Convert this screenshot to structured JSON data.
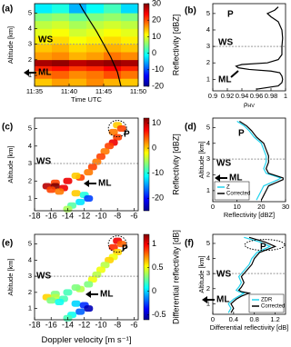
{
  "chart_data": [
    {
      "type": "heatmap",
      "panel": "(a)",
      "xlabel": "Time UTC",
      "ylabel": "Altitude [km]",
      "colorbar_label": "Reflectivity [dBZ]",
      "x_edges": [
        35,
        37.5,
        40,
        42.5,
        45,
        47.5,
        50
      ],
      "y_edges": [
        0.3,
        0.8,
        1.3,
        1.6,
        2.0,
        2.5,
        3.0,
        3.5,
        4.0,
        4.5,
        5.0,
        5.6
      ],
      "z": [
        [
          14,
          16,
          15,
          17,
          15,
          14
        ],
        [
          18,
          19,
          17,
          18,
          20,
          18
        ],
        [
          22,
          23,
          21,
          22,
          24,
          22
        ],
        [
          28,
          29,
          27,
          28,
          29,
          28
        ],
        [
          16,
          17,
          15,
          16,
          18,
          17
        ],
        [
          14,
          15,
          13,
          14,
          15,
          14
        ],
        [
          12,
          13,
          11,
          12,
          13,
          12
        ],
        [
          10,
          11,
          9,
          10,
          11,
          10
        ],
        [
          8,
          9,
          7,
          8,
          9,
          8
        ],
        [
          5,
          6,
          4,
          5,
          6,
          5
        ],
        [
          -2,
          0,
          -5,
          -1,
          2,
          -3
        ]
      ],
      "track": {
        "color": "#000000",
        "x": [
          41.5,
          42,
          43,
          44,
          45,
          46,
          47,
          47.5
        ],
        "y": [
          5.6,
          5.2,
          4.5,
          3.8,
          3,
          2.2,
          1.2,
          0.3
        ]
      },
      "xlim": [
        35,
        50
      ],
      "xticks": [
        {
          "value": 35,
          "label": "11:35"
        },
        {
          "value": 40,
          "label": "11:40"
        },
        {
          "value": 45,
          "label": "11:45"
        },
        {
          "value": 50,
          "label": "11:50"
        }
      ],
      "ylim": [
        0.3,
        5.6
      ],
      "yticks": [
        1,
        2,
        3,
        4,
        5
      ],
      "clim": [
        -20,
        30
      ],
      "cticks": [
        30,
        20,
        10,
        0,
        -10,
        -20
      ],
      "hlines": [
        3
      ],
      "annotations": [
        "WS",
        "ML"
      ]
    },
    {
      "type": "profile",
      "panel": "(b)",
      "xlabel": "ρ",
      "xlabel_sub": "HV",
      "series": [
        {
          "color": "#000000",
          "altitudes": [
            0.4,
            0.6,
            0.8,
            1.0,
            1.2,
            1.4,
            1.5,
            1.6,
            1.7,
            1.8,
            1.9,
            2.0,
            2.2,
            2.5,
            3.0,
            3.5,
            4.0,
            4.5,
            4.8,
            5.0,
            5.2,
            5.4
          ],
          "values": [
            0.96,
            0.99,
            0.995,
            0.996,
            0.995,
            0.992,
            0.98,
            0.95,
            0.935,
            0.932,
            0.94,
            0.975,
            0.99,
            0.995,
            0.995,
            0.996,
            0.995,
            0.99,
            0.98,
            0.975,
            0.985,
            0.99
          ]
        }
      ],
      "xlim": [
        0.9,
        1
      ],
      "xticks": [
        0.9,
        0.92,
        0.94,
        0.96,
        0.98,
        1
      ],
      "ylim": [
        0.3,
        5.6
      ],
      "yticks": [
        1,
        2,
        3,
        4,
        5
      ],
      "hlines": [
        3
      ],
      "annotations": [
        "P",
        "WS",
        "ML"
      ]
    },
    {
      "type": "cells",
      "panel": "(c)",
      "ylabel": "Altitude [km]",
      "colorbar_label": "Reflectivity [dBZ]",
      "x": [
        -8,
        -7.5,
        -8.5,
        -8,
        -8.5,
        -9,
        -9.5,
        -10,
        -10.5,
        -11,
        -11.5,
        -12.5,
        -14,
        -15.5,
        -16.5,
        -15.5,
        -14.5,
        -16,
        -15,
        -13,
        -12,
        -11.5,
        -12.5,
        -13.5,
        -14,
        -13
      ],
      "y": [
        5.2,
        5.0,
        4.8,
        4.5,
        4.2,
        4.0,
        3.7,
        3.4,
        3.1,
        2.8,
        2.5,
        2.2,
        2.0,
        1.9,
        1.7,
        1.7,
        1.6,
        1.5,
        1.4,
        1.3,
        1.2,
        1.0,
        0.8,
        0.6,
        0.4,
        2.3
      ],
      "z": [
        0,
        5,
        3,
        5,
        8,
        5,
        3,
        5,
        3,
        5,
        3,
        5,
        8,
        5,
        10,
        12,
        8,
        5,
        3,
        0,
        -10,
        -18,
        -12,
        -8,
        -5,
        0
      ],
      "xlim": [
        -18,
        -5.5
      ],
      "xticks": [
        -18,
        -16,
        -14,
        -12,
        -10,
        -8,
        -6
      ],
      "ylim": [
        0.3,
        5.6
      ],
      "yticks": [
        1,
        2,
        3,
        4,
        5
      ],
      "clim": [
        -25,
        12
      ],
      "cticks": [
        10,
        0,
        -10,
        -20
      ],
      "hlines": [
        3
      ],
      "annotations": [
        "P",
        "WS",
        "ML"
      ]
    },
    {
      "type": "profile",
      "panel": "(d)",
      "ylabel": "Altitude [km]",
      "xlabel": "Reflectivity [dBZ]",
      "legend": "lower left",
      "series": [
        {
          "name": "Z",
          "color": "#22d3ee",
          "altitudes": [
            0.4,
            0.7,
            1.0,
            1.3,
            1.5,
            1.7,
            1.8,
            1.9,
            2.1,
            2.4,
            2.8,
            3.2,
            3.6,
            4.0,
            4.4,
            4.8,
            5.1,
            5.4
          ],
          "values": [
            18,
            19,
            20,
            21,
            24,
            27,
            28,
            26,
            22,
            21,
            22,
            22,
            21,
            20,
            17,
            15,
            13,
            10
          ]
        },
        {
          "name": "Corrected",
          "color": "#000000",
          "altitudes": [
            0.4,
            0.7,
            1.0,
            1.3,
            1.5,
            1.7,
            1.8,
            1.9,
            2.1,
            2.4,
            2.8,
            3.2,
            3.6,
            4.0,
            4.4,
            4.8,
            5.1,
            5.4
          ],
          "values": [
            20,
            21,
            22,
            23,
            26,
            29,
            29,
            27,
            23,
            22,
            23,
            23,
            22,
            21,
            18,
            16,
            14,
            11
          ]
        }
      ],
      "xlim": [
        0,
        30
      ],
      "xticks": [
        0,
        10,
        20,
        30
      ],
      "ylim": [
        0.3,
        5.6
      ],
      "yticks": [
        1,
        2,
        3,
        4,
        5
      ],
      "hlines": [
        3
      ],
      "annotations": [
        "P",
        "WS",
        "ML"
      ]
    },
    {
      "type": "cells",
      "panel": "(e)",
      "ylabel": "Altitude [km]",
      "xlabel": "Doppler velocity [m s⁻¹]",
      "colorbar_label": "Differential reflectivity [dB]",
      "x": [
        -8,
        -7.5,
        -8.5,
        -8,
        -8.5,
        -9,
        -9.5,
        -10,
        -10.5,
        -11,
        -11.5,
        -12.5,
        -14,
        -15.5,
        -16.5,
        -15.5,
        -14.5,
        -16,
        -15,
        -13,
        -12,
        -11.5,
        -12.5,
        -13.5,
        -14,
        -13
      ],
      "y": [
        5.2,
        5.0,
        4.8,
        4.5,
        4.2,
        4.0,
        3.7,
        3.4,
        3.1,
        2.8,
        2.5,
        2.2,
        2.0,
        1.9,
        1.7,
        1.7,
        1.6,
        1.5,
        1.4,
        1.3,
        1.2,
        1.0,
        0.8,
        0.6,
        0.4,
        2.3
      ],
      "z": [
        1.0,
        0.8,
        0.9,
        0.6,
        0.5,
        0.6,
        0.4,
        0.5,
        0.4,
        0.5,
        0.3,
        0.4,
        0.2,
        0.3,
        0.6,
        0.4,
        0.2,
        0.3,
        0.1,
        0,
        -0.3,
        -0.5,
        -0.2,
        0.1,
        0.2,
        0.3
      ],
      "xlim": [
        -18,
        -5.5
      ],
      "xticks": [
        -18,
        -16,
        -14,
        -12,
        -10,
        -8,
        -6
      ],
      "ylim": [
        0.3,
        5.6
      ],
      "yticks": [
        1,
        2,
        3,
        4,
        5
      ],
      "clim": [
        -0.6,
        1.2
      ],
      "cticks": [
        1,
        0.5,
        0,
        -0.5
      ],
      "hlines": [
        3
      ],
      "annotations": [
        "P",
        "WS",
        "ML"
      ]
    },
    {
      "type": "profile",
      "panel": "(f)",
      "ylabel": "Altitude [km]",
      "xlabel": "Differential reflectivity [dB]",
      "legend": "lower right",
      "series": [
        {
          "name": "ZDR",
          "color": "#22d3ee",
          "altitudes": [
            0.4,
            0.7,
            1.0,
            1.3,
            1.5,
            1.7,
            1.8,
            1.9,
            2.1,
            2.4,
            2.8,
            3.2,
            3.6,
            4.0,
            4.4,
            4.8,
            5.1,
            5.4
          ],
          "values": [
            0.3,
            0.35,
            0.3,
            0.4,
            0.5,
            0.6,
            0.5,
            0.45,
            0.5,
            0.55,
            0.5,
            0.6,
            0.7,
            0.75,
            0.85,
            1.1,
            0.9,
            0.6
          ]
        },
        {
          "name": "Corrected",
          "color": "#000000",
          "altitudes": [
            0.4,
            0.7,
            1.0,
            1.3,
            1.5,
            1.7,
            1.8,
            1.9,
            2.1,
            2.4,
            2.8,
            3.2,
            3.6,
            4.0,
            4.4,
            4.8,
            5.1,
            5.4
          ],
          "values": [
            0.35,
            0.4,
            0.35,
            0.45,
            0.55,
            0.7,
            0.55,
            0.5,
            0.55,
            0.6,
            0.55,
            0.65,
            0.75,
            0.8,
            0.9,
            1.2,
            1.0,
            0.7
          ]
        }
      ],
      "xlim": [
        0,
        1.4
      ],
      "xticks": [
        0,
        0.4,
        0.8,
        1.2
      ],
      "ylim": [
        0.3,
        5.6
      ],
      "yticks": [
        1,
        2,
        3,
        4,
        5
      ],
      "hlines": [
        3
      ],
      "annotations": [
        "P",
        "WS",
        "ML"
      ]
    }
  ]
}
